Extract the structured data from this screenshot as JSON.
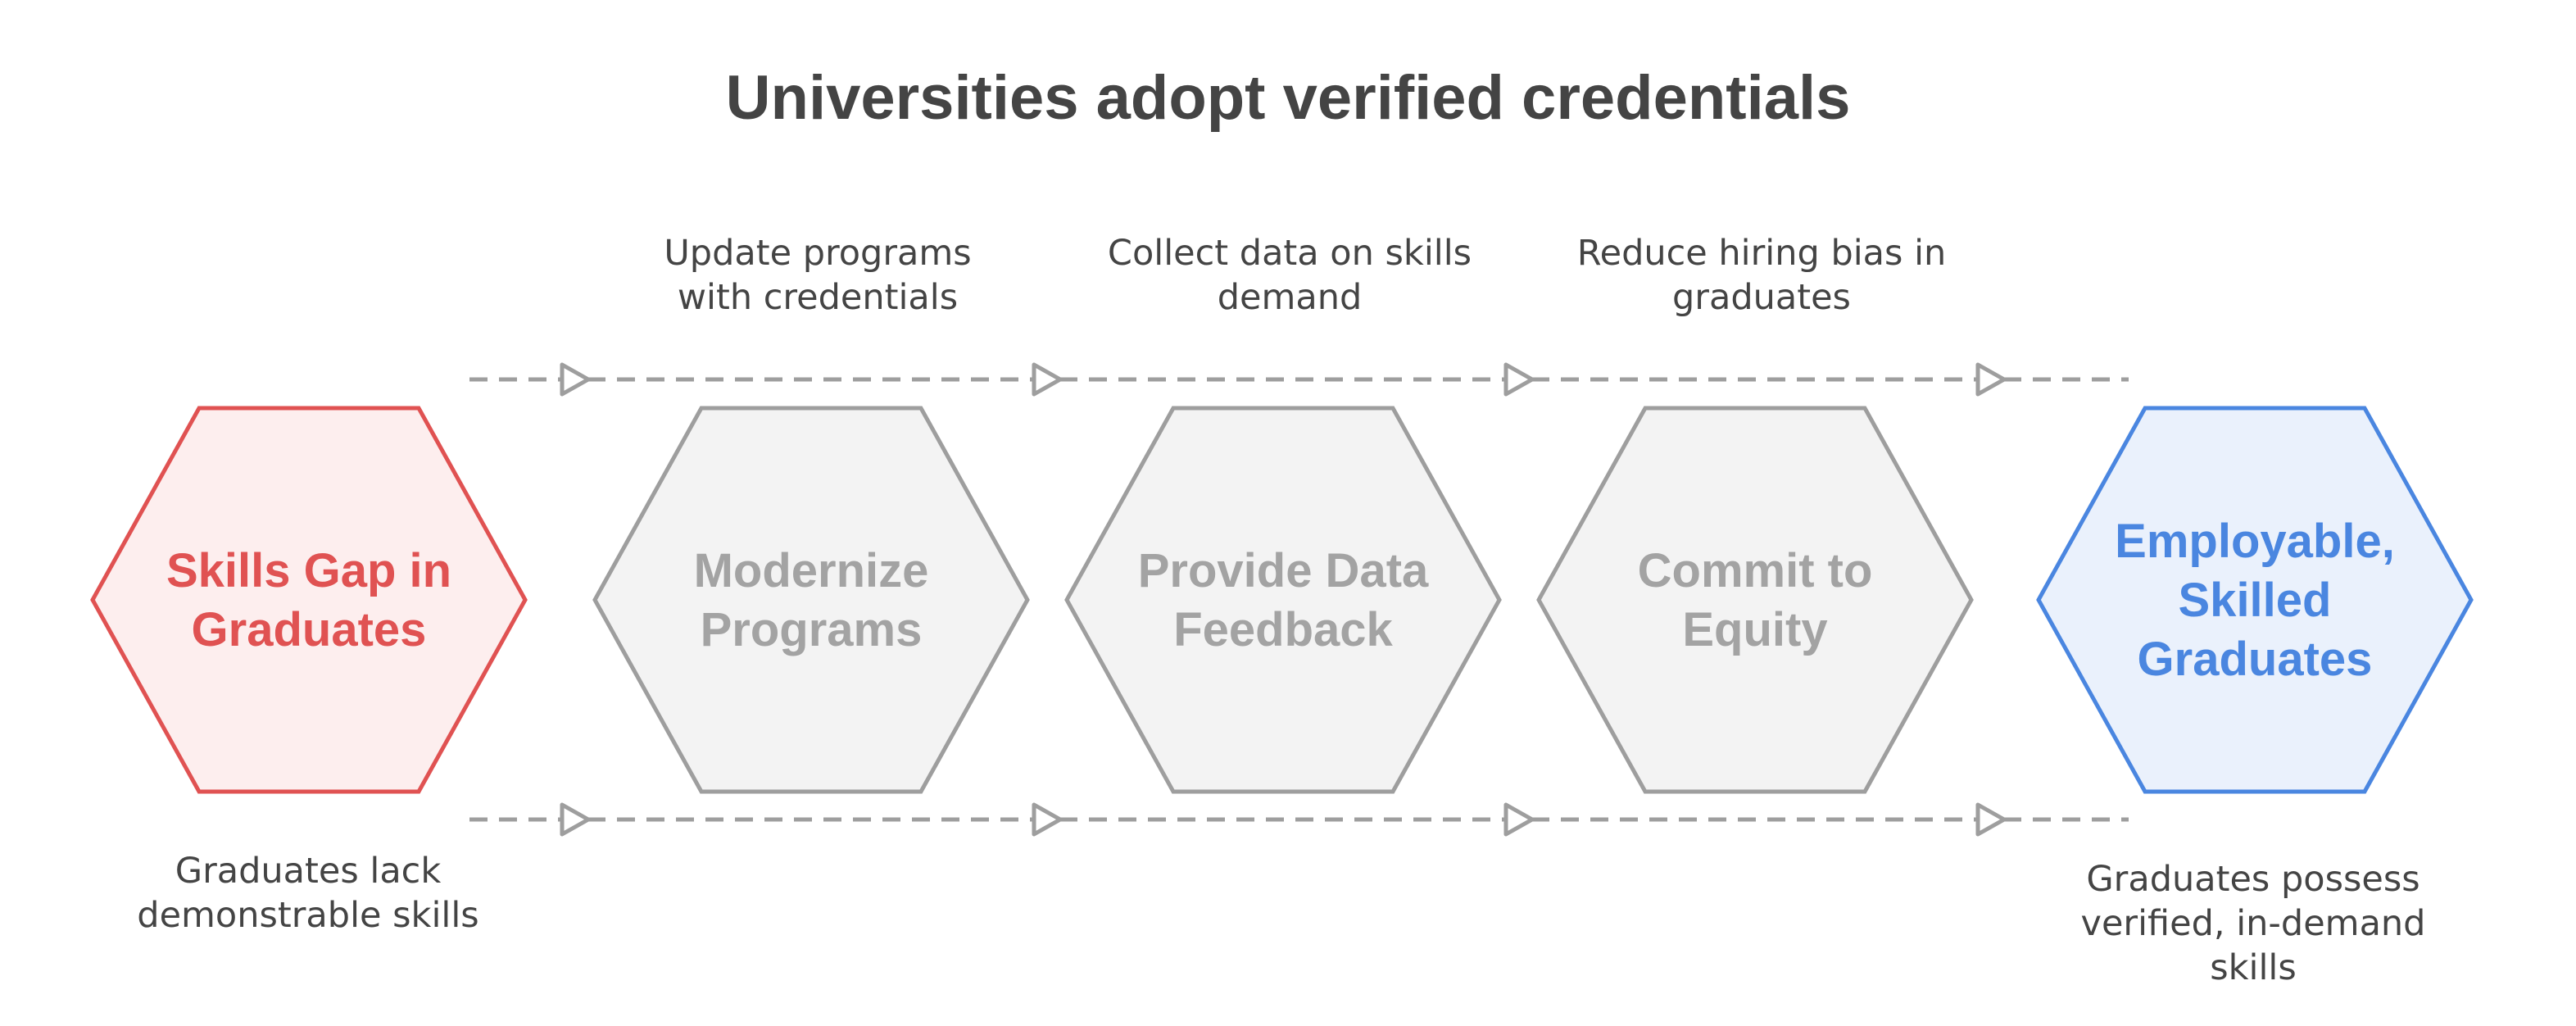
{
  "title": "Universities adopt verified credentials",
  "steps": [
    {
      "label_lines": [
        "Skills Gap in",
        "Graduates"
      ],
      "caption": "Graduates lack\ndemonstrable skills",
      "state": "start"
    },
    {
      "label_lines": [
        "Modernize",
        "Programs"
      ],
      "caption": "Update programs\nwith credentials",
      "state": "middle"
    },
    {
      "label_lines": [
        "Provide Data",
        "Feedback"
      ],
      "caption": "Collect data on skills\ndemand",
      "state": "middle"
    },
    {
      "label_lines": [
        "Commit to",
        "Equity"
      ],
      "caption": "Reduce hiring bias in\ngraduates",
      "state": "middle"
    },
    {
      "label_lines": [
        "Employable,",
        "Skilled",
        "Graduates"
      ],
      "caption": "Graduates possess\nverified, in-demand\nskills",
      "state": "end"
    }
  ],
  "colors": {
    "start_stroke": "#E05252",
    "start_fill": "#FDEEEE",
    "start_text": "#E05252",
    "middle_stroke": "#9E9E9E",
    "middle_fill": "#F3F3F3",
    "middle_text": "#A3A3A3",
    "end_stroke": "#4A86E0",
    "end_fill": "#EAF1FC",
    "end_text": "#4A86E0",
    "connector": "#9E9E9E"
  }
}
